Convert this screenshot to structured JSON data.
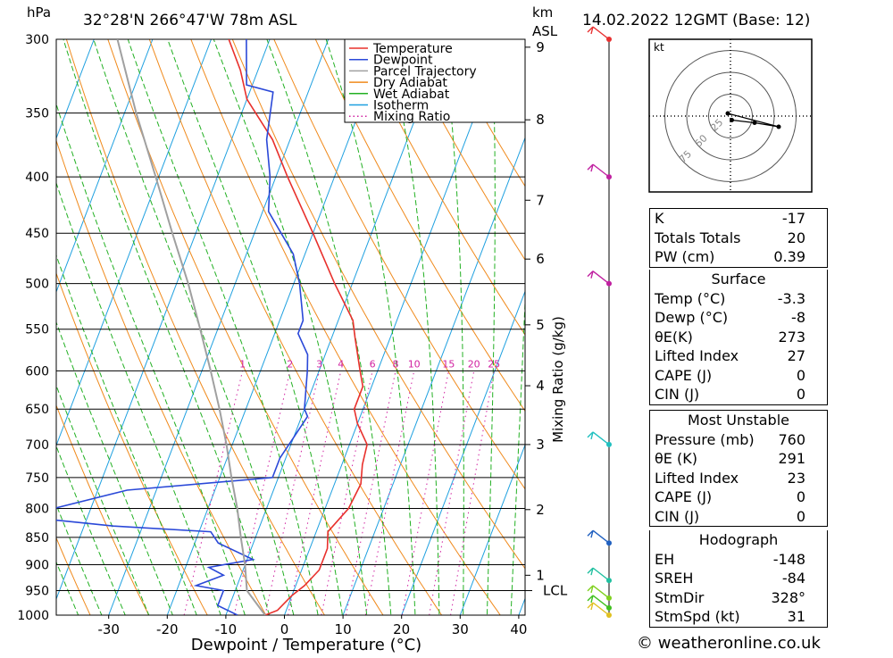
{
  "header": {
    "location": "32°28'N  266°47'W  78m  ASL",
    "datetime": "14.02.2022  12GMT  (Base: 12)",
    "pressure_unit": "hPa",
    "height_unit_line1": "km",
    "height_unit_line2": "ASL",
    "knots_label": "kt",
    "lcl_label": "LCL",
    "mixing_ratio_axis_label": "Mixing Ratio (g/kg)"
  },
  "legend": [
    {
      "label": "Temperature",
      "color": "#e8302c",
      "dash": false
    },
    {
      "label": "Dewpoint",
      "color": "#2a48d8",
      "dash": false
    },
    {
      "label": "Parcel Trajectory",
      "color": "#a0a0a0",
      "dash": false
    },
    {
      "label": "Dry Adiabat",
      "color": "#f08a1c",
      "dash": false
    },
    {
      "label": "Wet Adiabat",
      "color": "#22b022",
      "dash": false
    },
    {
      "label": "Isotherm",
      "color": "#1ea0e0",
      "dash": false
    },
    {
      "label": "Mixing Ratio",
      "color": "#d020a0",
      "dash": true
    }
  ],
  "chart_data": {
    "type": "line",
    "title": "32°28'N  266°47'W  78m  ASL",
    "xlabel": "Dewpoint / Temperature (°C)",
    "ylabel": "hPa",
    "xlim": [
      -40,
      40
    ],
    "ylim": [
      1000,
      300
    ],
    "x_ticks": [
      -30,
      -20,
      -10,
      0,
      10,
      20,
      30,
      40
    ],
    "pressure_ticks": [
      300,
      350,
      400,
      450,
      500,
      550,
      600,
      650,
      700,
      750,
      800,
      850,
      900,
      950,
      1000
    ],
    "height_ticks_km": [
      {
        "km": "1",
        "p": 920
      },
      {
        "km": "2",
        "p": 802
      },
      {
        "km": "3",
        "p": 700
      },
      {
        "km": "4",
        "p": 619
      },
      {
        "km": "5",
        "p": 545
      },
      {
        "km": "6",
        "p": 475
      },
      {
        "km": "7",
        "p": 420
      },
      {
        "km": "8",
        "p": 355
      },
      {
        "km": "9",
        "p": 305
      }
    ],
    "lcl_pressure": 950,
    "mixing_ratio_labels": [
      "1",
      "2",
      "3",
      "4",
      "6",
      "8",
      "10",
      "15",
      "20",
      "25"
    ],
    "series": [
      {
        "name": "Temperature",
        "color": "#e8302c",
        "points": [
          [
            1000,
            -3.3
          ],
          [
            990,
            -1.5
          ],
          [
            960,
            0
          ],
          [
            940,
            1.5
          ],
          [
            910,
            3
          ],
          [
            870,
            3
          ],
          [
            840,
            2
          ],
          [
            800,
            4
          ],
          [
            760,
            4.5
          ],
          [
            730,
            3.5
          ],
          [
            700,
            3
          ],
          [
            670,
            0
          ],
          [
            650,
            -1.5
          ],
          [
            620,
            -1.5
          ],
          [
            600,
            -3
          ],
          [
            560,
            -6
          ],
          [
            540,
            -7.5
          ],
          [
            500,
            -13
          ],
          [
            450,
            -20
          ],
          [
            400,
            -28
          ],
          [
            370,
            -33
          ],
          [
            340,
            -40
          ],
          [
            320,
            -43
          ],
          [
            300,
            -47
          ]
        ]
      },
      {
        "name": "Dewpoint",
        "color": "#2a48d8",
        "points": [
          [
            1000,
            -8
          ],
          [
            980,
            -12
          ],
          [
            950,
            -12
          ],
          [
            940,
            -17
          ],
          [
            920,
            -13
          ],
          [
            905,
            -16
          ],
          [
            890,
            -9
          ],
          [
            860,
            -16
          ],
          [
            840,
            -18
          ],
          [
            830,
            -35
          ],
          [
            820,
            -45
          ],
          [
            810,
            -50
          ],
          [
            770,
            -35
          ],
          [
            750,
            -11
          ],
          [
            720,
            -11
          ],
          [
            690,
            -10
          ],
          [
            660,
            -9
          ],
          [
            650,
            -10
          ],
          [
            600,
            -12
          ],
          [
            580,
            -13
          ],
          [
            555,
            -16
          ],
          [
            540,
            -16
          ],
          [
            500,
            -19
          ],
          [
            470,
            -22
          ],
          [
            430,
            -29
          ],
          [
            400,
            -31
          ],
          [
            370,
            -34
          ],
          [
            335,
            -36
          ],
          [
            330,
            -41
          ],
          [
            300,
            -44
          ]
        ]
      },
      {
        "name": "Parcel Trajectory",
        "color": "#a0a0a0",
        "points": [
          [
            1000,
            -3.3
          ],
          [
            950,
            -8
          ],
          [
            900,
            -10
          ],
          [
            850,
            -12.5
          ],
          [
            800,
            -15
          ],
          [
            750,
            -18
          ],
          [
            700,
            -21
          ],
          [
            650,
            -24.5
          ],
          [
            600,
            -28.5
          ],
          [
            550,
            -33
          ],
          [
            500,
            -38
          ],
          [
            450,
            -44
          ],
          [
            400,
            -50.5
          ],
          [
            350,
            -58
          ],
          [
            300,
            -66
          ]
        ]
      }
    ]
  },
  "wind_profile": [
    {
      "p": 1000,
      "color": "#e0c020"
    },
    {
      "p": 985,
      "color": "#40c020"
    },
    {
      "p": 965,
      "color": "#80d020"
    },
    {
      "p": 930,
      "color": "#20c0a0"
    },
    {
      "p": 860,
      "color": "#2060c0"
    },
    {
      "p": 700,
      "color": "#20c0c0"
    },
    {
      "p": 500,
      "color": "#c020a0"
    },
    {
      "p": 400,
      "color": "#c020a0"
    },
    {
      "p": 300,
      "color": "#e83030"
    }
  ],
  "hodograph": {
    "ring_labels": [
      "25",
      "50",
      "75"
    ],
    "points_kt": [
      [
        1,
        -3
      ],
      [
        18,
        -5
      ],
      [
        36,
        -8
      ],
      [
        -2,
        2
      ]
    ]
  },
  "indices": [
    {
      "label": "K",
      "value": "-17"
    },
    {
      "label": "Totals Totals",
      "value": "20"
    },
    {
      "label": "PW (cm)",
      "value": "0.39"
    }
  ],
  "surface": {
    "title": "Surface",
    "rows": [
      {
        "label": "Temp (°C)",
        "value": "-3.3"
      },
      {
        "label": "Dewp (°C)",
        "value": "-8"
      },
      {
        "label": "θE(K)",
        "value": "273"
      },
      {
        "label": "Lifted Index",
        "value": "27"
      },
      {
        "label": "CAPE (J)",
        "value": "0"
      },
      {
        "label": "CIN (J)",
        "value": "0"
      }
    ]
  },
  "most_unstable": {
    "title": "Most Unstable",
    "rows": [
      {
        "label": "Pressure (mb)",
        "value": "760"
      },
      {
        "label": "θE (K)",
        "value": "291"
      },
      {
        "label": "Lifted Index",
        "value": "23"
      },
      {
        "label": "CAPE (J)",
        "value": "0"
      },
      {
        "label": "CIN (J)",
        "value": "0"
      }
    ]
  },
  "hodograph_table": {
    "title": "Hodograph",
    "rows": [
      {
        "label": "EH",
        "value": "-148"
      },
      {
        "label": "SREH",
        "value": "-84"
      },
      {
        "label": "StmDir",
        "value": "328°"
      },
      {
        "label": "StmSpd (kt)",
        "value": "31"
      }
    ]
  },
  "footer": "© weatheronline.co.uk"
}
